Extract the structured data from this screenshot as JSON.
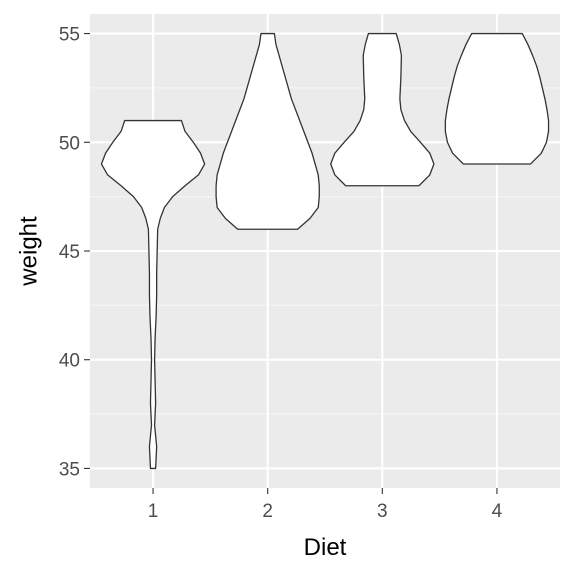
{
  "chart_data": {
    "type": "violin",
    "title": "",
    "xlabel": "Diet",
    "ylabel": "weight",
    "ylim": [
      34.1,
      55.9
    ],
    "y_ticks": [
      35,
      40,
      45,
      50,
      55
    ],
    "y_tick_labels": [
      "35",
      "40",
      "45",
      "50",
      "55"
    ],
    "categories": [
      "1",
      "2",
      "3",
      "4"
    ],
    "grid": true,
    "legend": "none",
    "colors": {
      "panel_background": "#EBEBEB",
      "grid_major": "#FFFFFF",
      "grid_minor": "#F5F5F5",
      "violin_fill": "#FFFFFF",
      "violin_outline": "#333333",
      "tick_label": "#4D4D4D",
      "axis_title": "#000000",
      "tick_mark": "#333333"
    },
    "series": [
      {
        "category": "1",
        "min": 35,
        "max": 51,
        "density_profile": [
          [
            35.0,
            0.05
          ],
          [
            36.0,
            0.07
          ],
          [
            37.0,
            0.03
          ],
          [
            38.0,
            0.05
          ],
          [
            39.0,
            0.04
          ],
          [
            40.0,
            0.03
          ],
          [
            41.0,
            0.04
          ],
          [
            42.0,
            0.06
          ],
          [
            43.0,
            0.07
          ],
          [
            44.0,
            0.07
          ],
          [
            45.0,
            0.08
          ],
          [
            46.0,
            0.09
          ],
          [
            46.5,
            0.14
          ],
          [
            47.0,
            0.22
          ],
          [
            47.5,
            0.38
          ],
          [
            48.0,
            0.62
          ],
          [
            48.5,
            0.88
          ],
          [
            49.0,
            1.0
          ],
          [
            49.5,
            0.92
          ],
          [
            50.0,
            0.78
          ],
          [
            50.5,
            0.62
          ],
          [
            51.0,
            0.55
          ]
        ]
      },
      {
        "category": "2",
        "min": 46,
        "max": 55,
        "density_profile": [
          [
            46.0,
            0.58
          ],
          [
            46.5,
            0.82
          ],
          [
            47.0,
            0.98
          ],
          [
            47.5,
            1.0
          ],
          [
            48.0,
            1.0
          ],
          [
            48.5,
            0.98
          ],
          [
            49.0,
            0.92
          ],
          [
            49.5,
            0.86
          ],
          [
            50.0,
            0.78
          ],
          [
            51.0,
            0.62
          ],
          [
            52.0,
            0.46
          ],
          [
            53.0,
            0.34
          ],
          [
            54.0,
            0.22
          ],
          [
            54.5,
            0.16
          ],
          [
            55.0,
            0.13
          ]
        ]
      },
      {
        "category": "3",
        "min": 48,
        "max": 55,
        "density_profile": [
          [
            48.0,
            0.71
          ],
          [
            48.5,
            0.92
          ],
          [
            49.0,
            1.0
          ],
          [
            49.5,
            0.92
          ],
          [
            50.0,
            0.74
          ],
          [
            50.5,
            0.55
          ],
          [
            51.0,
            0.43
          ],
          [
            51.5,
            0.36
          ],
          [
            52.0,
            0.34
          ],
          [
            53.0,
            0.36
          ],
          [
            54.0,
            0.37
          ],
          [
            54.5,
            0.33
          ],
          [
            55.0,
            0.27
          ]
        ]
      },
      {
        "category": "4",
        "min": 49,
        "max": 55,
        "density_profile": [
          [
            49.0,
            0.65
          ],
          [
            49.5,
            0.86
          ],
          [
            50.0,
            0.96
          ],
          [
            50.5,
            1.0
          ],
          [
            51.0,
            1.0
          ],
          [
            51.5,
            0.97
          ],
          [
            52.0,
            0.93
          ],
          [
            52.5,
            0.88
          ],
          [
            53.0,
            0.83
          ],
          [
            53.5,
            0.77
          ],
          [
            54.0,
            0.69
          ],
          [
            54.5,
            0.6
          ],
          [
            55.0,
            0.49
          ]
        ]
      }
    ]
  }
}
